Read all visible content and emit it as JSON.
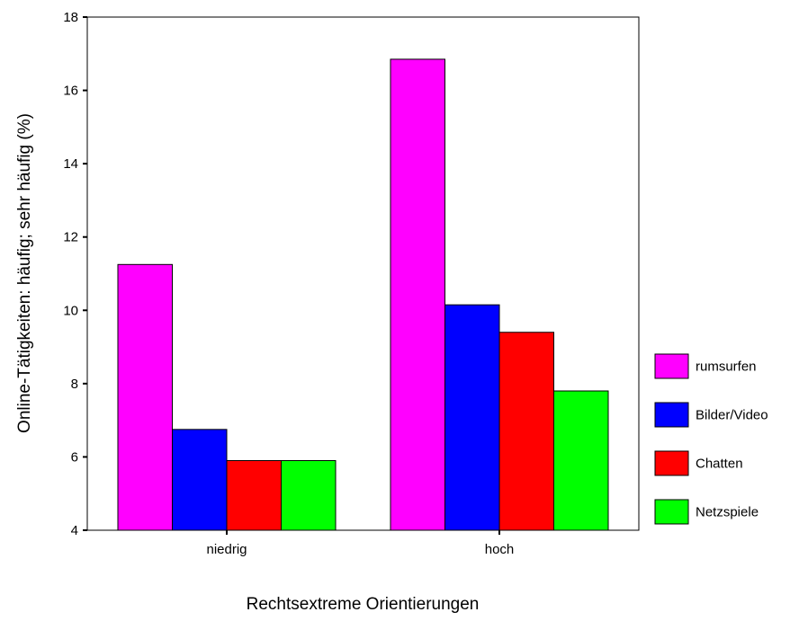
{
  "chart_data": {
    "type": "bar",
    "categories": [
      "niedrig",
      "hoch"
    ],
    "series": [
      {
        "name": "rumsurfen",
        "color": "#ff00ff",
        "values": [
          11.25,
          16.85
        ]
      },
      {
        "name": "Bilder/Video",
        "color": "#0000ff",
        "values": [
          6.75,
          10.15
        ]
      },
      {
        "name": "Chatten",
        "color": "#ff0000",
        "values": [
          5.9,
          9.4
        ]
      },
      {
        "name": "Netzspiele",
        "color": "#00ff00",
        "values": [
          5.9,
          7.8
        ]
      }
    ],
    "xlabel": "Rechtsextreme Orientierungen",
    "ylabel": "Online-Tätigkeiten: häufig; sehr häufig (%)",
    "ylim": [
      4,
      18
    ],
    "yticks": [
      4,
      6,
      8,
      10,
      12,
      14,
      16,
      18
    ],
    "grid": false,
    "legend_position": "right"
  }
}
